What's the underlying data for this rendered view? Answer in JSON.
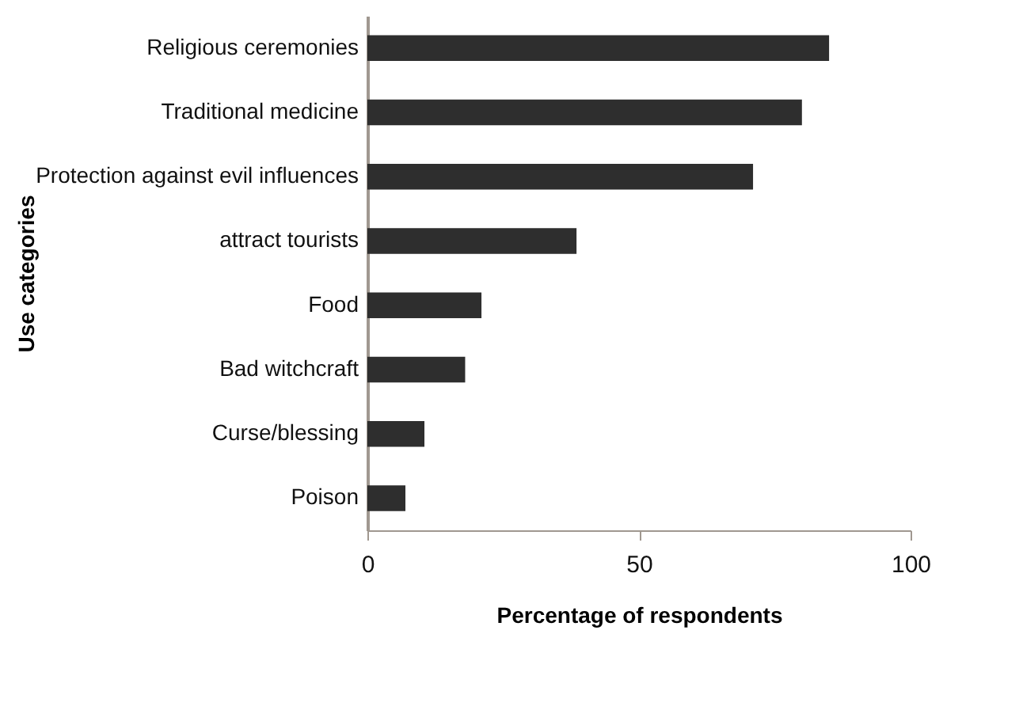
{
  "chart_data": {
    "type": "bar",
    "orientation": "horizontal",
    "xlabel": "Percentage of respondents",
    "ylabel": "Use categories",
    "categories": [
      "Religious ceremonies",
      "Traditional medicine",
      "Protection against evil influences",
      "attract tourists",
      "Food",
      "Bad witchcraft",
      "Curse/blessing",
      "Poison"
    ],
    "values": [
      85,
      80,
      71,
      38.5,
      21,
      18,
      10.5,
      7
    ],
    "color": "#2e2e2e",
    "xlim": [
      0,
      100
    ],
    "xticks": [
      0,
      50,
      100
    ],
    "grid": false
  }
}
